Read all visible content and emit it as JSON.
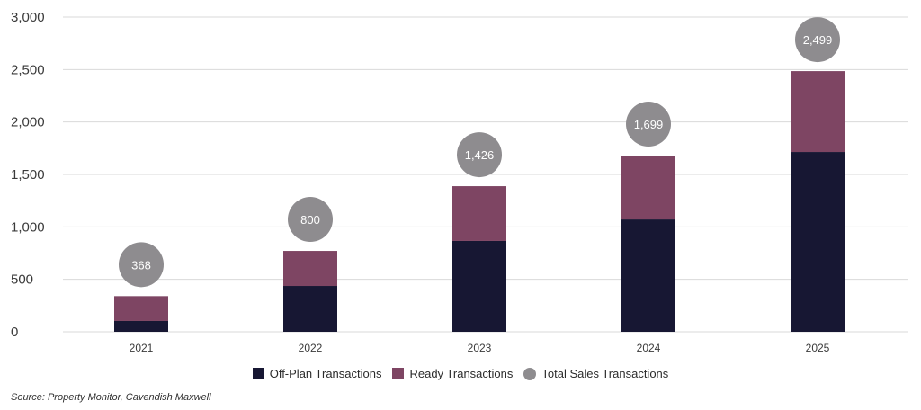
{
  "chart_data": {
    "type": "bar",
    "stacked": true,
    "title": "",
    "xlabel": "",
    "ylabel": "",
    "categories": [
      "2021",
      "2022",
      "2023",
      "2024",
      "2025"
    ],
    "series": [
      {
        "name": "Off-Plan Transactions",
        "color": "#171733",
        "values": [
          103,
          437,
          866,
          1071,
          1714
        ]
      },
      {
        "name": "Ready Transactions",
        "color": "#7e4563",
        "values": [
          237,
          334,
          522,
          609,
          771
        ]
      }
    ],
    "totals": {
      "name": "Total Sales Transactions",
      "color": "#8e8c8f",
      "values": [
        368,
        800,
        1426,
        1699,
        2499
      ],
      "labels": [
        "368",
        "800",
        "1,426",
        "1,699",
        "2,499"
      ]
    },
    "ylim": [
      0,
      3000
    ],
    "yticks": [
      0,
      500,
      1000,
      1500,
      2000,
      2500,
      3000
    ],
    "ytick_labels": [
      "0",
      "500",
      "1,000",
      "1,500",
      "2,000",
      "2,500",
      "3,000"
    ],
    "grid": true,
    "legend_position": "bottom-center"
  },
  "legend": {
    "items": [
      {
        "label": "Off-Plan Transactions",
        "color": "#171733",
        "shape": "square"
      },
      {
        "label": "Ready Transactions",
        "color": "#7e4563",
        "shape": "square"
      },
      {
        "label": "Total Sales Transactions",
        "color": "#8e8c8f",
        "shape": "circle"
      }
    ]
  },
  "source": "Source: Property Monitor, Cavendish Maxwell"
}
